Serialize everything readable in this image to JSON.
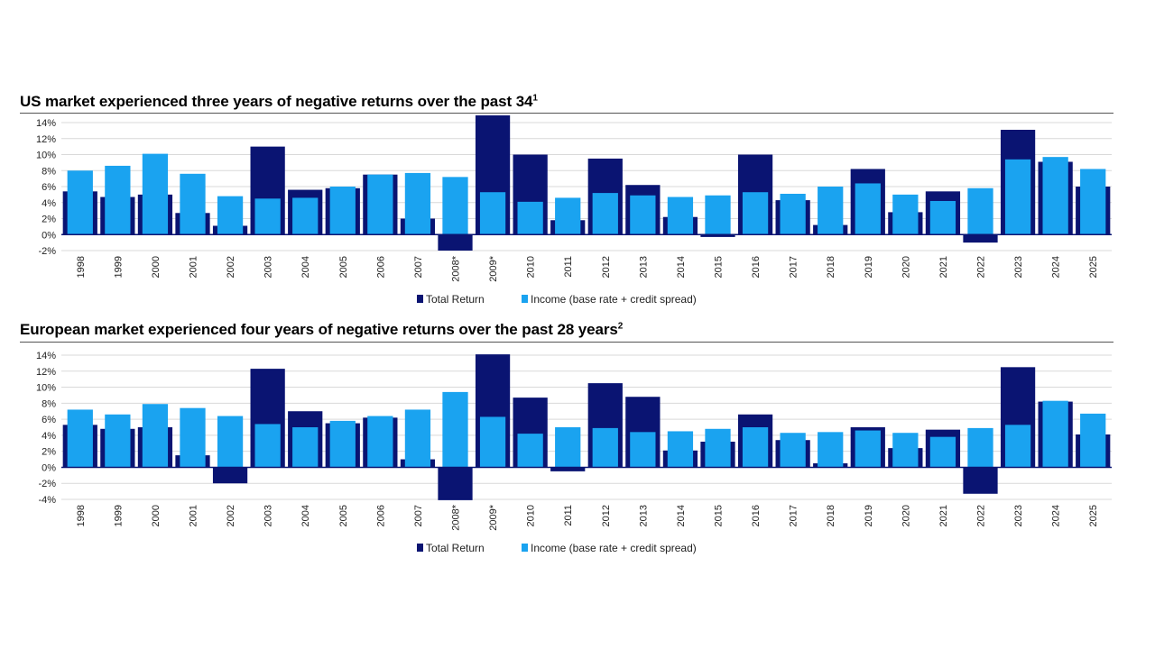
{
  "chart_data": [
    {
      "type": "bar",
      "title": "US market experienced three years of negative returns over the past 34",
      "title_superscript": "1",
      "categories": [
        "1998",
        "1999",
        "2000",
        "2001",
        "2002",
        "2003",
        "2004",
        "2005",
        "2006",
        "2007",
        "2008*",
        "2009*",
        "2010",
        "2011",
        "2012",
        "2013",
        "2014",
        "2015",
        "2016",
        "2017",
        "2018",
        "2019",
        "2020",
        "2021",
        "2022",
        "2023",
        "2024",
        "2025"
      ],
      "series": [
        {
          "name": "Total Return",
          "color": "#0a1472",
          "values": [
            5.4,
            4.7,
            5.0,
            2.7,
            1.1,
            11.0,
            5.6,
            5.8,
            7.5,
            2.0,
            -2.0,
            15.0,
            10.0,
            1.8,
            9.5,
            6.2,
            2.2,
            -0.3,
            10.0,
            4.3,
            1.2,
            8.2,
            2.8,
            5.4,
            -1.0,
            13.1,
            9.1,
            6.0
          ]
        },
        {
          "name": "Income (base rate + credit spread)",
          "color": "#1aa3f0",
          "values": [
            8.0,
            8.6,
            10.1,
            7.6,
            4.8,
            4.5,
            4.6,
            6.0,
            7.5,
            7.7,
            7.2,
            5.3,
            4.1,
            4.6,
            5.2,
            4.9,
            4.7,
            4.9,
            5.3,
            5.1,
            6.0,
            6.4,
            5.0,
            4.2,
            5.8,
            9.4,
            9.7,
            8.2
          ]
        }
      ],
      "ylim": [
        -2,
        14
      ],
      "yticks": [
        -2,
        0,
        2,
        4,
        6,
        8,
        10,
        12,
        14
      ],
      "ytick_labels": [
        "-2%",
        "0%",
        "2%",
        "4%",
        "6%",
        "8%",
        "10%",
        "12%",
        "14%"
      ],
      "legend": [
        "Total Return",
        "Income (base rate + credit spread)"
      ],
      "legend_position": "bottom-center",
      "grid": true
    },
    {
      "type": "bar",
      "title": "European market experienced four years of negative returns over the past 28 years",
      "title_superscript": "2",
      "categories": [
        "1998",
        "1999",
        "2000",
        "2001",
        "2002",
        "2003",
        "2004",
        "2005",
        "2006",
        "2007",
        "2008*",
        "2009*",
        "2010",
        "2011",
        "2012",
        "2013",
        "2014",
        "2015",
        "2016",
        "2017",
        "2018",
        "2019",
        "2020",
        "2021",
        "2022",
        "2023",
        "2024",
        "2025"
      ],
      "series": [
        {
          "name": "Total Return",
          "color": "#0a1472",
          "values": [
            5.3,
            4.8,
            5.0,
            1.5,
            -2.0,
            12.3,
            7.0,
            5.5,
            6.2,
            1.0,
            -4.1,
            14.1,
            8.7,
            -0.5,
            10.5,
            8.8,
            2.1,
            3.2,
            6.6,
            3.4,
            0.5,
            5.0,
            2.4,
            4.7,
            -3.3,
            12.5,
            8.2,
            4.1
          ]
        },
        {
          "name": "Income (base rate + credit spread)",
          "color": "#1aa3f0",
          "values": [
            7.2,
            6.6,
            7.9,
            7.4,
            6.4,
            5.4,
            5.0,
            5.8,
            6.4,
            7.2,
            9.4,
            6.3,
            4.2,
            5.0,
            4.9,
            4.4,
            4.5,
            4.8,
            5.0,
            4.3,
            4.4,
            4.6,
            4.3,
            3.8,
            4.9,
            5.3,
            8.3,
            6.7
          ]
        }
      ],
      "ylim": [
        -4,
        14
      ],
      "yticks": [
        -4,
        -2,
        0,
        2,
        4,
        6,
        8,
        10,
        12,
        14
      ],
      "ytick_labels": [
        "-4%",
        "-2%",
        "0%",
        "2%",
        "4%",
        "6%",
        "8%",
        "10%",
        "12%",
        "14%"
      ],
      "legend": [
        "Total Return",
        "Income (base rate + credit spread)"
      ],
      "legend_position": "bottom-center",
      "grid": true
    }
  ]
}
